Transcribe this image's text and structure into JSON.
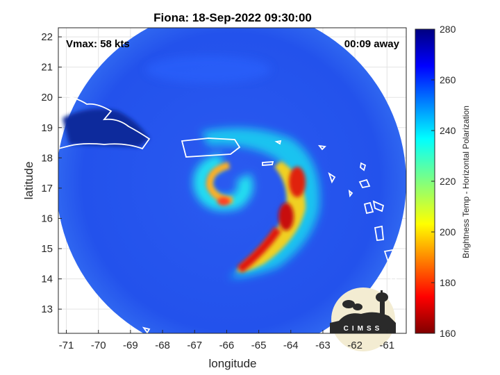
{
  "title": "Fiona: 18-Sep-2022 09:30:00",
  "annotations": {
    "vmax": "Vmax: 58 kts",
    "time_away": "00:09 away"
  },
  "axes": {
    "xlabel": "longitude",
    "ylabel": "latitude",
    "xlim": [
      -71.25,
      -60.4
    ],
    "ylim": [
      12.2,
      22.3
    ],
    "xticks": [
      "-71",
      "-70",
      "-69",
      "-68",
      "-67",
      "-66",
      "-65",
      "-64",
      "-63",
      "-62",
      "-61"
    ],
    "yticks": [
      "22",
      "21",
      "20",
      "19",
      "18",
      "17",
      "16",
      "15",
      "14",
      "13"
    ],
    "grid": true
  },
  "colorbar": {
    "label": "Brightness Temp - Horizontal Polarization",
    "min": 160,
    "max": 280,
    "ticks": [
      "280",
      "260",
      "240",
      "220",
      "200",
      "180",
      "160"
    ],
    "colormap": "jet"
  },
  "logo": {
    "text": "CIMSS"
  },
  "colors": {
    "swath_background": "#1f4fe8",
    "coast": "#ffffff",
    "cold_core": "#d01010"
  }
}
